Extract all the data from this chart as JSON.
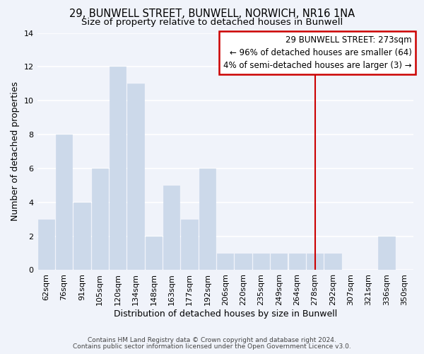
{
  "title": "29, BUNWELL STREET, BUNWELL, NORWICH, NR16 1NA",
  "subtitle": "Size of property relative to detached houses in Bunwell",
  "xlabel": "Distribution of detached houses by size in Bunwell",
  "ylabel": "Number of detached properties",
  "categories": [
    "62sqm",
    "76sqm",
    "91sqm",
    "105sqm",
    "120sqm",
    "134sqm",
    "148sqm",
    "163sqm",
    "177sqm",
    "192sqm",
    "206sqm",
    "220sqm",
    "235sqm",
    "249sqm",
    "264sqm",
    "278sqm",
    "292sqm",
    "307sqm",
    "321sqm",
    "336sqm",
    "350sqm"
  ],
  "values": [
    3,
    8,
    4,
    6,
    12,
    11,
    2,
    5,
    3,
    6,
    1,
    1,
    1,
    1,
    1,
    1,
    1,
    0,
    0,
    2,
    0
  ],
  "bar_color": "#ccd9ea",
  "bar_edge_color": "#ccd9ea",
  "background_color": "#f0f3fa",
  "grid_color": "#ffffff",
  "vline_x_index": 15,
  "vline_color": "#cc0000",
  "vline_label": "29 BUNWELL STREET: 273sqm",
  "annotation_line1": "← 96% of detached houses are smaller (64)",
  "annotation_line2": "4% of semi-detached houses are larger (3) →",
  "annotation_box_facecolor": "#ffffff",
  "annotation_box_edge_color": "#cc0000",
  "ylim": [
    0,
    14
  ],
  "yticks": [
    0,
    2,
    4,
    6,
    8,
    10,
    12,
    14
  ],
  "title_fontsize": 10.5,
  "subtitle_fontsize": 9.5,
  "axis_label_fontsize": 9,
  "tick_fontsize": 8,
  "annotation_fontsize": 8.5,
  "footer_line1": "Contains HM Land Registry data © Crown copyright and database right 2024.",
  "footer_line2": "Contains public sector information licensed under the Open Government Licence v3.0."
}
